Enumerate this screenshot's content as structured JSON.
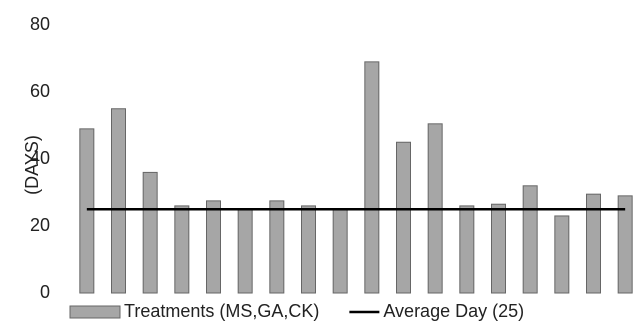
{
  "chart_data": {
    "type": "bar",
    "y_label": "(DAYS)",
    "categories": [
      null,
      null,
      null,
      null,
      null,
      null,
      null,
      null,
      null,
      null,
      null,
      null,
      null,
      null,
      null,
      null,
      null,
      null
    ],
    "series": [
      {
        "name": "Treatments (MS,GA,CK)",
        "type": "bar",
        "color": "#a6a6a6",
        "values": [
          49,
          55,
          36,
          26,
          27.5,
          25,
          27.5,
          26,
          25,
          69,
          45,
          50.5,
          26,
          26.5,
          32,
          23,
          29.5,
          29
        ]
      },
      {
        "name": "Average Day (25)",
        "type": "line",
        "color": "#000000",
        "values": [
          25,
          25,
          25,
          25,
          25,
          25,
          25,
          25,
          25,
          25,
          25,
          25,
          25,
          25,
          25,
          25,
          25,
          25
        ]
      }
    ],
    "ylim": [
      0,
      80
    ],
    "yticks": [
      0,
      20,
      40,
      60,
      80
    ],
    "grid": false,
    "legend": "bottom"
  }
}
